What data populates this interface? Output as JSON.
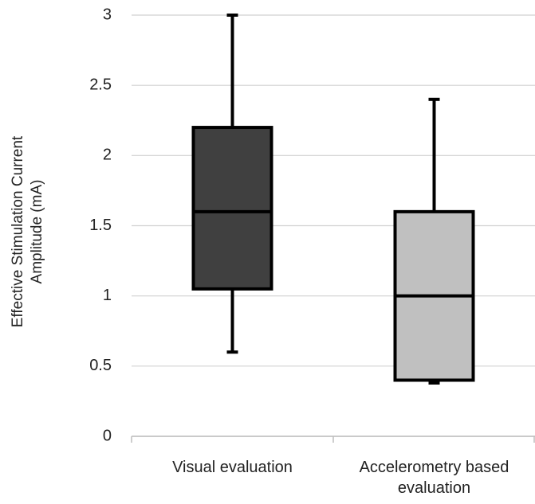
{
  "chart_data": {
    "type": "box",
    "y_label": "Effective Stimulation Current Amplitude (mA)",
    "categories": [
      "Visual evaluation",
      "Accelerometry based evaluation"
    ],
    "boxes": [
      {
        "min": 0.6,
        "q1": 1.05,
        "median": 1.6,
        "q3": 2.2,
        "max": 3,
        "color": "#404040"
      },
      {
        "min": 0.38,
        "q1": 0.4,
        "median": 1,
        "q3": 1.6,
        "max": 2.4,
        "color": "#c0c0c0"
      }
    ],
    "ylim": [
      0,
      3
    ],
    "yticks": [
      0,
      0.5,
      1,
      1.5,
      2,
      2.5,
      3
    ],
    "grid": true
  }
}
